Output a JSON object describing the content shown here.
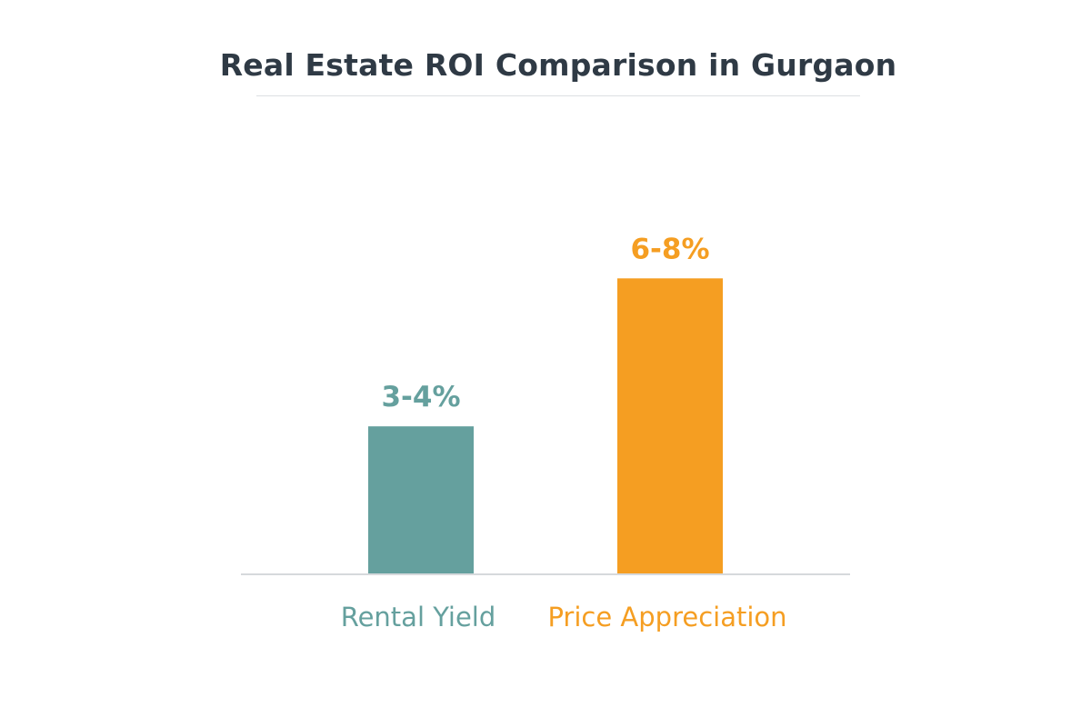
{
  "chart_data": {
    "type": "bar",
    "title": "Real Estate ROI Comparison in Gurgaon",
    "xlabel": "",
    "ylabel": "",
    "ylim": [
      0,
      9.5
    ],
    "grid": false,
    "legend": "none",
    "categories": [
      "Rental Yield",
      "Price Appreciation"
    ],
    "values": [
      3.5,
      7
    ],
    "value_labels": [
      "3-4%",
      "6-8%"
    ],
    "colors": [
      "#65a09e",
      "#f59e22"
    ]
  }
}
